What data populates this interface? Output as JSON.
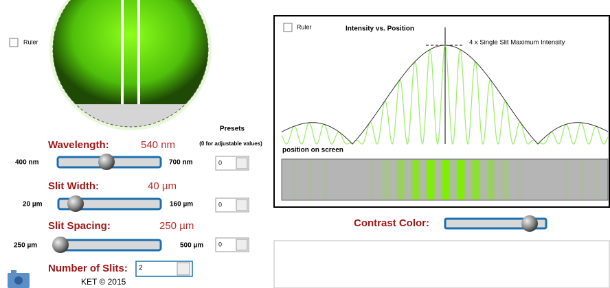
{
  "ruler": "Ruler",
  "controls": {
    "presets_title": "Presets",
    "presets_note": "(0 for adjustable values)",
    "wavelength": {
      "label": "Wavelength:",
      "value": "540 nm",
      "min": "400 nm",
      "max": "700 nm",
      "preset": "0"
    },
    "slit_width": {
      "label": "Slit Width:",
      "value": "40 µm",
      "min": "20 µm",
      "max": "160 µm",
      "preset": "0"
    },
    "slit_spacing": {
      "label": "Slit Spacing:",
      "value": "250 µm",
      "min": "250 µm",
      "max": "500 µm",
      "preset": "0"
    }
  },
  "slits": {
    "label": "Number of Slits:",
    "value": "2"
  },
  "footer": "KET © 2015",
  "graph": {
    "ruler": "Ruler",
    "title": "Intensity vs. Position",
    "annotation": "4 x Single Slit Maximum Intensity",
    "axis_label": "position on screen"
  },
  "contrast_label": "Contrast Color:"
}
